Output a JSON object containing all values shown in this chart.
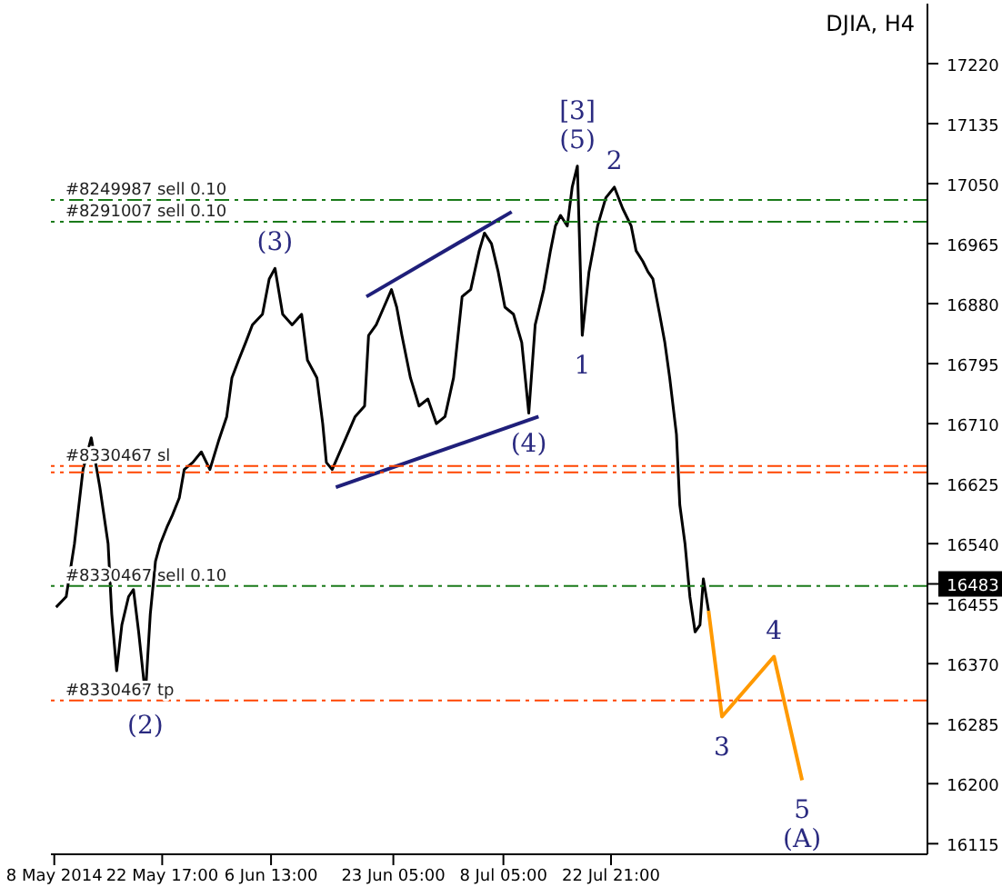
{
  "chart_data": {
    "type": "line",
    "title": "DJIA, H4",
    "xlim": [
      "2014-05-07T13:00",
      "2014-09-04T00:00"
    ],
    "xticks": [
      {
        "value": "2014-05-08T00:00",
        "label": "8 May 2014"
      },
      {
        "value": "2014-05-22T17:00",
        "label": "22 May 17:00"
      },
      {
        "value": "2014-06-06T13:00",
        "label": "6 Jun 13:00"
      },
      {
        "value": "2014-06-23T05:00",
        "label": "23 Jun 05:00"
      },
      {
        "value": "2014-07-08T05:00",
        "label": "8 Jul 05:00"
      },
      {
        "value": "2014-07-22T21:00",
        "label": "22 Jul 21:00"
      }
    ],
    "ylim": [
      16100,
      17305
    ],
    "yticks": [
      16115,
      16200,
      16285,
      16370,
      16455,
      {
        "value": 16483,
        "label": "16483"
      },
      16540,
      16625,
      16710,
      16795,
      16880,
      16965,
      17050,
      17135,
      17220
    ],
    "grid": false,
    "legend": false,
    "marker": "none",
    "line_style": "solid",
    "series": [
      {
        "color": "#000000",
        "x": [
          "2014-05-08T06:00",
          "2014-05-09T15:00",
          "2014-05-10T18:00",
          "2014-05-11T22:00",
          "2014-05-13T01:00",
          "2014-05-14T05:00",
          "2014-05-15T08:00",
          "2014-05-15T20:00",
          "2014-05-16T12:00",
          "2014-05-17T05:00",
          "2014-05-18T03:00",
          "2014-05-18T19:00",
          "2014-05-19T12:00",
          "2014-05-20T10:00",
          "2014-05-21T02:00",
          "2014-05-21T19:00",
          "2014-05-22T11:00",
          "2014-05-23T10:00",
          "2014-05-24T02:00",
          "2014-05-25T01:00",
          "2014-05-25T17:00",
          "2014-05-26T21:00",
          "2014-05-28T01:00",
          "2014-05-29T05:00",
          "2014-05-30T09:00",
          "2014-05-31T12:00",
          "2014-06-01T05:00",
          "2014-06-02T03:00",
          "2014-06-03T02:00",
          "2014-06-04T00:00",
          "2014-06-05T09:00",
          "2014-06-06T07:00",
          "2014-06-07T02:00",
          "2014-06-08T03:00",
          "2014-06-09T10:00",
          "2014-06-10T17:00",
          "2014-06-11T12:00",
          "2014-06-12T19:00",
          "2014-06-13T14:00",
          "2014-06-14T02:00",
          "2014-06-14T21:00",
          "2014-06-15T22:00",
          "2014-06-16T23:00",
          "2014-06-18T00:00",
          "2014-06-19T07:00",
          "2014-06-19T20:00",
          "2014-06-20T21:00",
          "2014-06-21T22:00",
          "2014-06-22T23:00",
          "2014-06-23T16:00",
          "2014-06-24T09:00",
          "2014-06-25T13:00",
          "2014-06-26T17:00",
          "2014-06-27T22:00",
          "2014-06-29T02:00",
          "2014-06-30T06:00",
          "2014-07-01T10:00",
          "2014-07-02T14:00",
          "2014-07-03T18:00",
          "2014-07-04T22:00",
          "2014-07-05T15:00",
          "2014-07-06T14:00",
          "2014-07-07T12:00",
          "2014-07-08T10:00",
          "2014-07-09T14:00",
          "2014-07-10T17:00",
          "2014-07-11T16:00",
          "2014-07-12T13:00",
          "2014-07-13T17:00",
          "2014-07-14T15:00",
          "2014-07-15T07:00",
          "2014-07-16T00:00",
          "2014-07-16T22:00",
          "2014-07-17T14:00",
          "2014-07-18T07:00",
          "2014-07-18T23:00",
          "2014-07-19T21:00",
          "2014-07-21T01:00",
          "2014-07-22T04:00",
          "2014-07-23T08:00",
          "2014-07-24T11:00",
          "2014-07-25T15:00",
          "2014-07-26T07:00",
          "2014-07-27T05:00",
          "2014-07-27T22:00",
          "2014-07-28T14:00",
          "2014-07-29T12:00",
          "2014-07-30T05:00",
          "2014-07-30T21:00",
          "2014-07-31T19:00",
          "2014-08-01T06:00",
          "2014-08-01T23:00",
          "2014-08-02T15:00",
          "2014-08-03T08:00",
          "2014-08-04T00:00",
          "2014-08-04T11:00",
          "2014-08-05T04:00"
        ],
        "values": [
          16450,
          16465,
          16540,
          16645,
          16690,
          16620,
          16540,
          16440,
          16360,
          16425,
          16465,
          16475,
          16415,
          16325,
          16440,
          16515,
          16540,
          16565,
          16580,
          16605,
          16645,
          16655,
          16670,
          16645,
          16685,
          16720,
          16775,
          16800,
          16825,
          16850,
          16865,
          16915,
          16930,
          16865,
          16850,
          16865,
          16800,
          16775,
          16710,
          16655,
          16645,
          16670,
          16695,
          16720,
          16735,
          16835,
          16850,
          16875,
          16900,
          16875,
          16835,
          16775,
          16735,
          16745,
          16710,
          16720,
          16775,
          16890,
          16900,
          16955,
          16980,
          16965,
          16925,
          16875,
          16865,
          16825,
          16725,
          16850,
          16900,
          16955,
          16990,
          17005,
          16990,
          17045,
          17075,
          16835,
          16925,
          16990,
          17030,
          17045,
          17015,
          16990,
          16955,
          16940,
          16925,
          16915,
          16865,
          16825,
          16775,
          16695,
          16595,
          16540,
          16465,
          16415,
          16425,
          16490,
          16445
        ]
      },
      {
        "color": "#1f1f7a",
        "x": [
          "2014-06-19T13:00",
          "2014-07-09T08:00"
        ],
        "values": [
          16890,
          17010
        ]
      },
      {
        "color": "#1f1f7a",
        "x": [
          "2014-06-15T09:00",
          "2014-07-13T00:00"
        ],
        "values": [
          16620,
          16720
        ]
      },
      {
        "color": "#ff9900",
        "x": [
          "2014-08-05T04:00",
          "2014-08-07T00:00",
          "2014-08-14T02:00",
          "2014-08-17T22:00"
        ],
        "values": [
          16445,
          16295,
          16380,
          16205
        ]
      }
    ],
    "ref_lines": [
      {
        "axis": "y",
        "value": 17027,
        "label": "#8249987 sell 0.10",
        "color": "#1a7a1a",
        "line_style": "dashed"
      },
      {
        "axis": "y",
        "value": 16996,
        "label": "#8291007 sell 0.10",
        "color": "#1a7a1a",
        "line_style": "dashed"
      },
      {
        "axis": "y",
        "value": 16650,
        "label": "#8330467 sl",
        "color": "#ff4500",
        "line_style": "dashed"
      },
      {
        "axis": "y",
        "value": 16641,
        "label": null,
        "color": "#ff4500",
        "line_style": "dashed"
      },
      {
        "axis": "y",
        "value": 16480,
        "label": "#8330467 sell 0.10",
        "color": "#1a7a1a",
        "line_style": "dashed"
      },
      {
        "axis": "y",
        "value": 16318,
        "label": "#8330467 tp",
        "color": "#ff4500",
        "line_style": "dashed"
      }
    ],
    "annotations": [
      {
        "text": "(3)",
        "x": "2014-06-07T02:00",
        "y": 16930
      },
      {
        "text": "(2)",
        "x": "2014-05-20T10:00",
        "y": 16325
      },
      {
        "text": "(4)",
        "x": "2014-07-11T16:00",
        "y": 16725
      },
      {
        "text": "(5)",
        "x": "2014-07-18T07:00",
        "y": 17075
      },
      {
        "text": "[3]",
        "x": "2014-07-18T07:00",
        "y": 17075
      },
      {
        "text": "2",
        "x": "2014-07-23T08:00",
        "y": 17045
      },
      {
        "text": "1",
        "x": "2014-07-18T23:00",
        "y": 16835
      },
      {
        "text": "3",
        "x": "2014-08-07T00:00",
        "y": 16295
      },
      {
        "text": "4",
        "x": "2014-08-14T02:00",
        "y": 16380
      },
      {
        "text": "5",
        "x": "2014-08-17T22:00",
        "y": 16205
      },
      {
        "text": "(A)",
        "x": "2014-08-17T22:00",
        "y": 16205
      }
    ]
  }
}
